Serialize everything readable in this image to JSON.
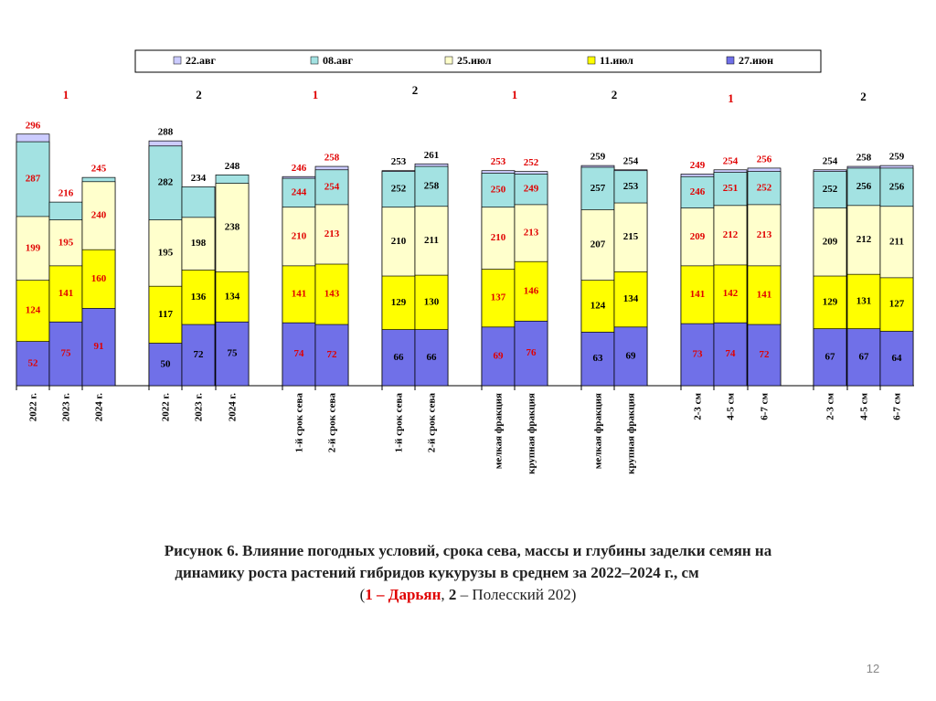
{
  "chart_data": {
    "type": "bar",
    "legend": [
      "22.авг",
      "08.авг",
      "25.июл",
      "11.июл",
      "27.июн"
    ],
    "ylim": [
      0,
      300
    ],
    "groups": [
      {
        "label": "1",
        "color": "#e00000",
        "categories": [
          "2022 г.",
          "2023 г.",
          "2024 г."
        ]
      },
      {
        "label": "2",
        "color": "#000000",
        "categories": [
          "2022 г.",
          "2023 г.",
          "2024 г."
        ]
      },
      {
        "label": "1",
        "color": "#e00000",
        "categories": [
          "1-й срок сева",
          "2-й срок сева"
        ]
      },
      {
        "label": "2",
        "color": "#000000",
        "categories": [
          "1-й срок сева",
          "2-й срок сева"
        ]
      },
      {
        "label": "1",
        "color": "#e00000",
        "categories": [
          "мелкая фракция",
          "крупная фракция"
        ]
      },
      {
        "label": "2",
        "color": "#000000",
        "categories": [
          "мелкая фракция",
          "крупная фракция"
        ]
      },
      {
        "label": "1",
        "color": "#e00000",
        "categories": [
          "2-3 см",
          "4-5 см",
          "6-7 см"
        ]
      },
      {
        "label": "2",
        "color": "#000000",
        "categories": [
          "2-3 см",
          "4-5 см",
          "6-7 см"
        ]
      }
    ],
    "series": [
      {
        "name": "22.авг",
        "color": "#ccccff",
        "values": [
          296,
          null,
          null,
          288,
          null,
          null,
          246,
          258,
          253,
          261,
          253,
          252,
          259,
          254,
          249,
          254,
          256,
          254,
          258,
          259
        ]
      },
      {
        "name": "08.авг",
        "color": "#a3e2e2",
        "values": [
          287,
          216,
          245,
          282,
          234,
          248,
          244,
          254,
          252,
          258,
          250,
          249,
          257,
          253,
          246,
          251,
          252,
          252,
          256,
          256
        ]
      },
      {
        "name": "25.июл",
        "color": "#ffffcc",
        "values": [
          199,
          195,
          240,
          195,
          198,
          238,
          210,
          213,
          210,
          211,
          210,
          213,
          207,
          215,
          209,
          212,
          213,
          209,
          212,
          211
        ]
      },
      {
        "name": "11.июл",
        "color": "#ffff00",
        "values": [
          124,
          141,
          160,
          117,
          136,
          134,
          141,
          143,
          129,
          130,
          137,
          146,
          124,
          134,
          141,
          142,
          141,
          129,
          131,
          127
        ]
      },
      {
        "name": "27.июн",
        "color": "#7070e8",
        "values": [
          52,
          75,
          91,
          50,
          72,
          75,
          74,
          72,
          66,
          66,
          69,
          76,
          63,
          69,
          73,
          74,
          72,
          67,
          67,
          64
        ]
      }
    ]
  },
  "caption": {
    "lines": [
      "Рисунок 6. Влияние погодных условий, срока сева, массы и глубины заделки семян на",
      "динамику роста растений гибридов кукурузы в среднем за 2022–2024 г., см"
    ],
    "parts": [
      "(",
      "1 – Дарьян",
      ", ",
      "2",
      " – Полесский 202)"
    ]
  },
  "page_number": "12"
}
